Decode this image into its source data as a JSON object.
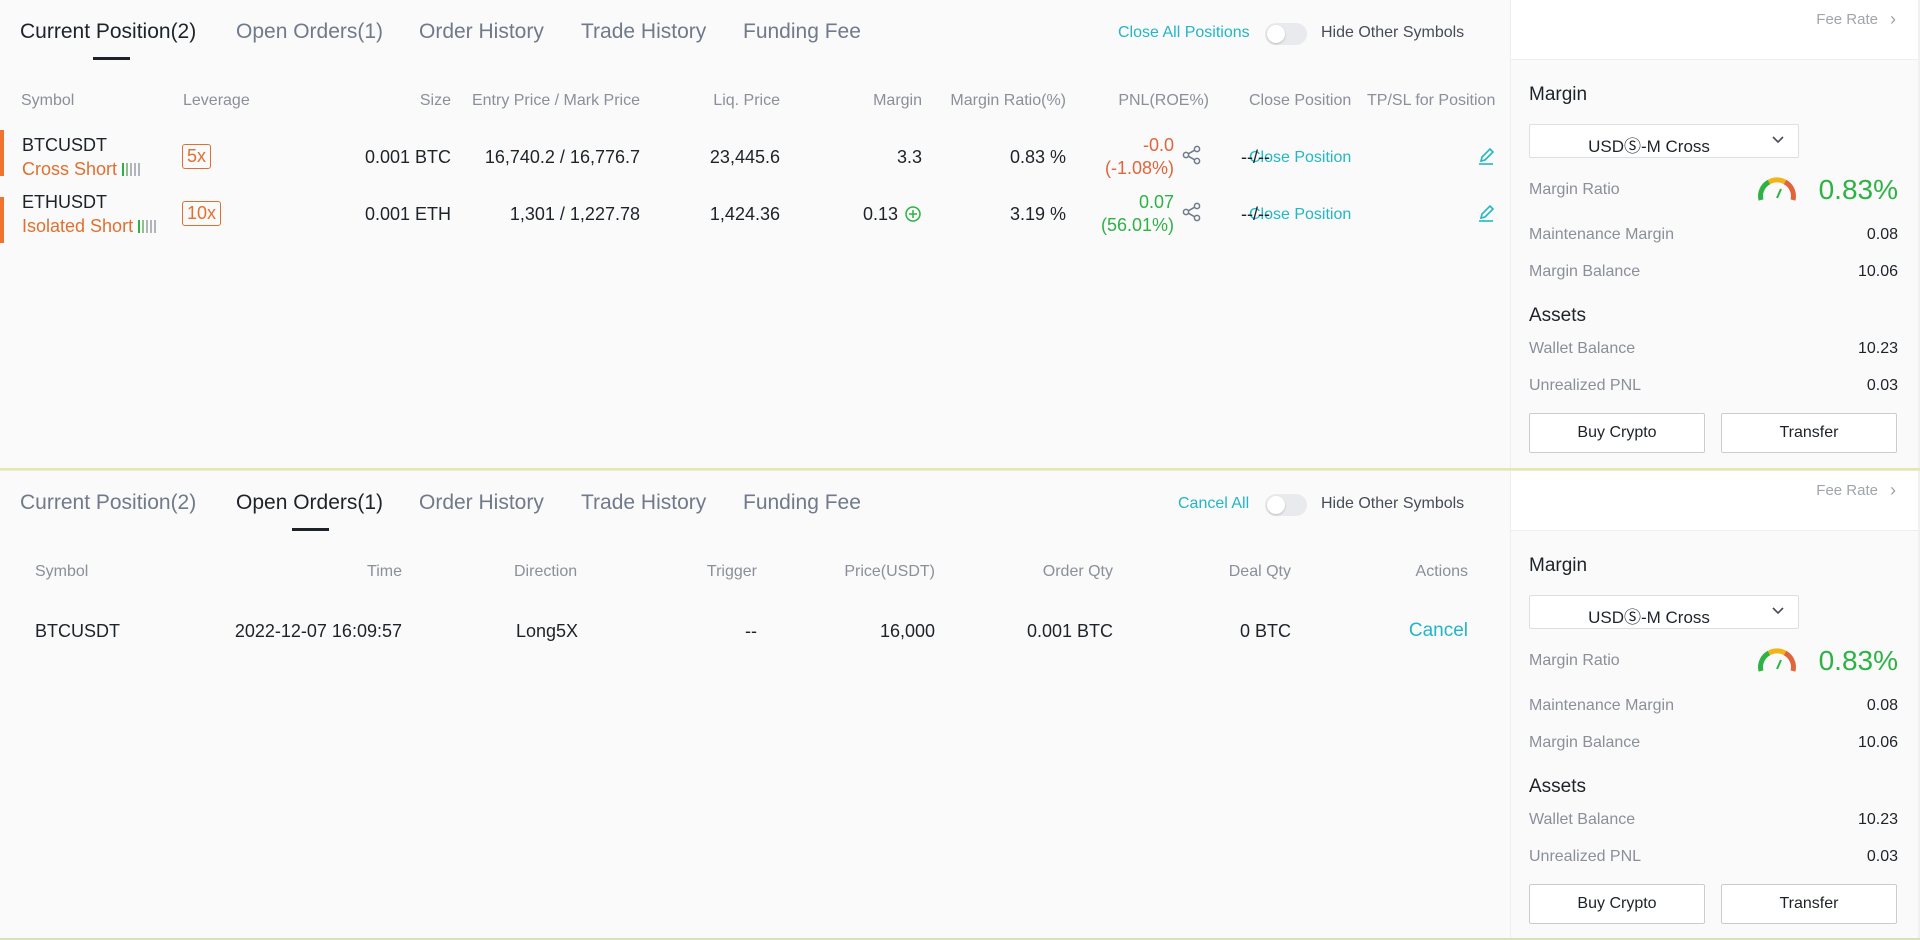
{
  "positions_panel": {
    "tabs": [
      "Current Position(2)",
      "Open Orders(1)",
      "Order History",
      "Trade History",
      "Funding Fee"
    ],
    "active_tab": 0,
    "close_all_label": "Close All Positions",
    "hide_other_label": "Hide Other Symbols",
    "columns": [
      "Symbol",
      "Leverage",
      "Size",
      "Entry Price / Mark Price",
      "Liq. Price",
      "Margin",
      "Margin Ratio(%)",
      "PNL(ROE%)",
      "Close Position",
      "TP/SL for Position"
    ],
    "rows": [
      {
        "symbol": "BTCUSDT",
        "mode": "Cross Short",
        "leverage": "5x",
        "size": "0.001 BTC",
        "entry_mark": "16,740.2 / 16,776.7",
        "liq_price": "23,445.6",
        "margin": "3.3",
        "margin_ratio": "0.83 %",
        "pnl": "-0.0",
        "roe": "(-1.08%)",
        "pnl_color": "#e0653a",
        "close_label": "Close Position",
        "tpsl": "--/--"
      },
      {
        "symbol": "ETHUSDT",
        "mode": "Isolated Short",
        "leverage": "10x",
        "size": "0.001 ETH",
        "entry_mark": "1,301 / 1,227.78",
        "liq_price": "1,424.36",
        "margin": "0.13",
        "margin_ratio": "3.19 %",
        "pnl": "0.07",
        "roe": "(56.01%)",
        "pnl_color": "#2eb245",
        "close_label": "Close Position",
        "tpsl": "--/--"
      }
    ]
  },
  "orders_panel": {
    "tabs": [
      "Current Position(2)",
      "Open Orders(1)",
      "Order History",
      "Trade History",
      "Funding Fee"
    ],
    "active_tab": 1,
    "cancel_all_label": "Cancel All",
    "hide_other_label": "Hide Other Symbols",
    "columns": [
      "Symbol",
      "Time",
      "Direction",
      "Trigger",
      "Price(USDT)",
      "Order Qty",
      "Deal Qty",
      "Actions"
    ],
    "rows": [
      {
        "symbol": "BTCUSDT",
        "time": "2022-12-07 16:09:57",
        "direction": "Long5X",
        "trigger": "--",
        "price": "16,000",
        "order_qty": "0.001 BTC",
        "deal_qty": "0 BTC",
        "action": "Cancel"
      }
    ]
  },
  "sidebar": {
    "fee_rate_label": "Fee Rate",
    "margin_title": "Margin",
    "margin_mode": "USDⓈ-M Cross",
    "margin_ratio_label": "Margin Ratio",
    "margin_ratio_value": "0.83%",
    "margin_ratio_fraction": 0.0083,
    "maintenance_margin_label": "Maintenance Margin",
    "maintenance_margin_value": "0.08",
    "margin_balance_label": "Margin Balance",
    "margin_balance_value": "10.06",
    "assets_title": "Assets",
    "wallet_balance_label": "Wallet Balance",
    "wallet_balance_value": "10.23",
    "unrealized_pnl_label": "Unrealized PNL",
    "unrealized_pnl_value": "0.03",
    "buy_crypto_label": "Buy Crypto",
    "transfer_label": "Transfer"
  },
  "colors": {
    "accent": "#22b6c6",
    "short": "#e07030",
    "profit": "#2eb245",
    "loss": "#e0653a"
  },
  "icons": [
    "share-icon",
    "edit-icon",
    "add-margin-icon",
    "chevron-down-icon",
    "chevron-right-icon",
    "gauge-icon",
    "risk-bars-icon"
  ]
}
